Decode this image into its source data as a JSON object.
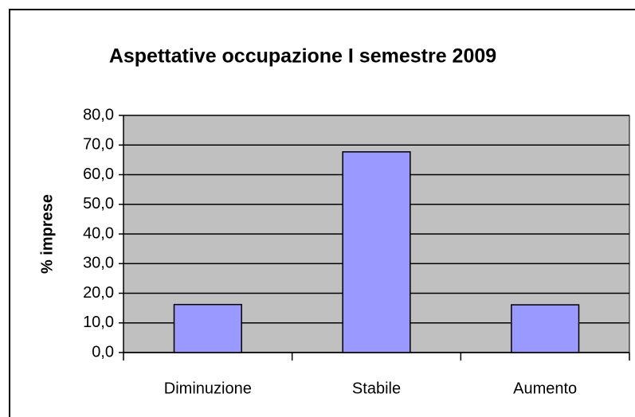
{
  "chart_data": {
    "type": "bar",
    "title": "Aspettative occupazione  I semestre 2009",
    "y_label": "% imprese",
    "categories": [
      "Diminuzione",
      "Stabile",
      "Aumento"
    ],
    "values": [
      16.2,
      67.7,
      16.1
    ],
    "color": "#9999ff",
    "ylim": [
      0,
      80
    ],
    "yticks": [
      {
        "value": 0,
        "label": "0,0"
      },
      {
        "value": 10,
        "label": "10,0"
      },
      {
        "value": 20,
        "label": "20,0"
      },
      {
        "value": 30,
        "label": "30,0"
      },
      {
        "value": 40,
        "label": "40,0"
      },
      {
        "value": 50,
        "label": "50,0"
      },
      {
        "value": 60,
        "label": "60,0"
      },
      {
        "value": 70,
        "label": "70,0"
      },
      {
        "value": 80,
        "label": "80,0"
      }
    ],
    "grid": true
  }
}
